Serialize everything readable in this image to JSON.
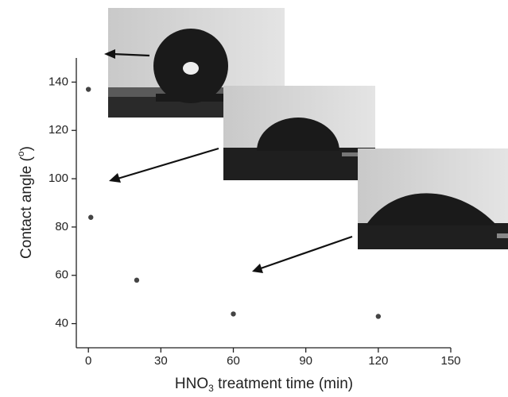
{
  "chart_data": {
    "type": "scatter",
    "x_label_parts": [
      "HNO",
      "3",
      " treatment time (min)"
    ],
    "y_label_parts": [
      "Contact angle (",
      "o",
      ")"
    ],
    "series": [
      {
        "color": "#444444",
        "x": [
          0,
          1,
          20,
          60,
          120
        ],
        "values": [
          137,
          84,
          58,
          44,
          43
        ]
      }
    ],
    "xlim": [
      -5,
      150
    ],
    "xticks": [
      0,
      30,
      60,
      90,
      120,
      150
    ],
    "ylim": [
      30,
      150
    ],
    "yticks": [
      40,
      60,
      80,
      100,
      120,
      140
    ]
  }
}
